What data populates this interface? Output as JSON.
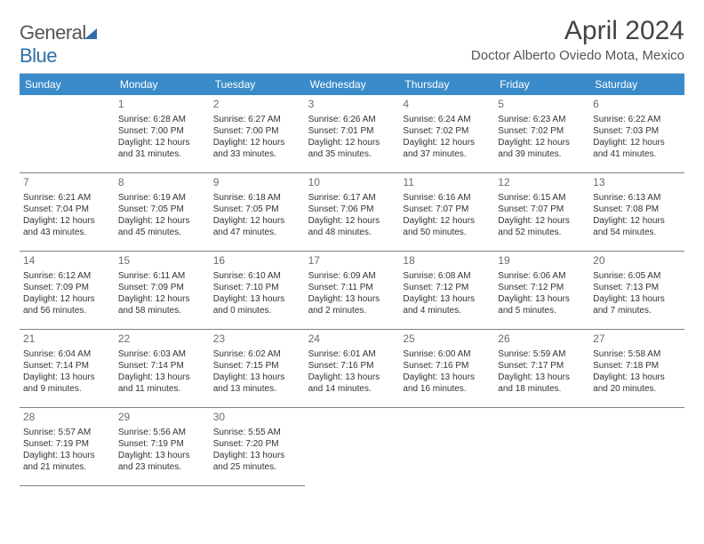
{
  "brand": {
    "part1": "General",
    "part2": "Blue"
  },
  "title": "April 2024",
  "location": "Doctor Alberto Oviedo Mota, Mexico",
  "style": {
    "header_bg": "#3a8bc9",
    "header_fg": "#ffffff",
    "border_color": "#808080",
    "daynum_color": "#6b6b6b",
    "text_color": "#333333",
    "font_size_body": 10,
    "font_size_daynum": 12,
    "font_size_head": 12,
    "font_size_title": 30,
    "font_size_location": 15
  },
  "weekdays": [
    "Sunday",
    "Monday",
    "Tuesday",
    "Wednesday",
    "Thursday",
    "Friday",
    "Saturday"
  ],
  "days": [
    null,
    {
      "n": "1",
      "l1": "Sunrise: 6:28 AM",
      "l2": "Sunset: 7:00 PM",
      "l3": "Daylight: 12 hours",
      "l4": "and 31 minutes."
    },
    {
      "n": "2",
      "l1": "Sunrise: 6:27 AM",
      "l2": "Sunset: 7:00 PM",
      "l3": "Daylight: 12 hours",
      "l4": "and 33 minutes."
    },
    {
      "n": "3",
      "l1": "Sunrise: 6:26 AM",
      "l2": "Sunset: 7:01 PM",
      "l3": "Daylight: 12 hours",
      "l4": "and 35 minutes."
    },
    {
      "n": "4",
      "l1": "Sunrise: 6:24 AM",
      "l2": "Sunset: 7:02 PM",
      "l3": "Daylight: 12 hours",
      "l4": "and 37 minutes."
    },
    {
      "n": "5",
      "l1": "Sunrise: 6:23 AM",
      "l2": "Sunset: 7:02 PM",
      "l3": "Daylight: 12 hours",
      "l4": "and 39 minutes."
    },
    {
      "n": "6",
      "l1": "Sunrise: 6:22 AM",
      "l2": "Sunset: 7:03 PM",
      "l3": "Daylight: 12 hours",
      "l4": "and 41 minutes."
    },
    {
      "n": "7",
      "l1": "Sunrise: 6:21 AM",
      "l2": "Sunset: 7:04 PM",
      "l3": "Daylight: 12 hours",
      "l4": "and 43 minutes."
    },
    {
      "n": "8",
      "l1": "Sunrise: 6:19 AM",
      "l2": "Sunset: 7:05 PM",
      "l3": "Daylight: 12 hours",
      "l4": "and 45 minutes."
    },
    {
      "n": "9",
      "l1": "Sunrise: 6:18 AM",
      "l2": "Sunset: 7:05 PM",
      "l3": "Daylight: 12 hours",
      "l4": "and 47 minutes."
    },
    {
      "n": "10",
      "l1": "Sunrise: 6:17 AM",
      "l2": "Sunset: 7:06 PM",
      "l3": "Daylight: 12 hours",
      "l4": "and 48 minutes."
    },
    {
      "n": "11",
      "l1": "Sunrise: 6:16 AM",
      "l2": "Sunset: 7:07 PM",
      "l3": "Daylight: 12 hours",
      "l4": "and 50 minutes."
    },
    {
      "n": "12",
      "l1": "Sunrise: 6:15 AM",
      "l2": "Sunset: 7:07 PM",
      "l3": "Daylight: 12 hours",
      "l4": "and 52 minutes."
    },
    {
      "n": "13",
      "l1": "Sunrise: 6:13 AM",
      "l2": "Sunset: 7:08 PM",
      "l3": "Daylight: 12 hours",
      "l4": "and 54 minutes."
    },
    {
      "n": "14",
      "l1": "Sunrise: 6:12 AM",
      "l2": "Sunset: 7:09 PM",
      "l3": "Daylight: 12 hours",
      "l4": "and 56 minutes."
    },
    {
      "n": "15",
      "l1": "Sunrise: 6:11 AM",
      "l2": "Sunset: 7:09 PM",
      "l3": "Daylight: 12 hours",
      "l4": "and 58 minutes."
    },
    {
      "n": "16",
      "l1": "Sunrise: 6:10 AM",
      "l2": "Sunset: 7:10 PM",
      "l3": "Daylight: 13 hours",
      "l4": "and 0 minutes."
    },
    {
      "n": "17",
      "l1": "Sunrise: 6:09 AM",
      "l2": "Sunset: 7:11 PM",
      "l3": "Daylight: 13 hours",
      "l4": "and 2 minutes."
    },
    {
      "n": "18",
      "l1": "Sunrise: 6:08 AM",
      "l2": "Sunset: 7:12 PM",
      "l3": "Daylight: 13 hours",
      "l4": "and 4 minutes."
    },
    {
      "n": "19",
      "l1": "Sunrise: 6:06 AM",
      "l2": "Sunset: 7:12 PM",
      "l3": "Daylight: 13 hours",
      "l4": "and 5 minutes."
    },
    {
      "n": "20",
      "l1": "Sunrise: 6:05 AM",
      "l2": "Sunset: 7:13 PM",
      "l3": "Daylight: 13 hours",
      "l4": "and 7 minutes."
    },
    {
      "n": "21",
      "l1": "Sunrise: 6:04 AM",
      "l2": "Sunset: 7:14 PM",
      "l3": "Daylight: 13 hours",
      "l4": "and 9 minutes."
    },
    {
      "n": "22",
      "l1": "Sunrise: 6:03 AM",
      "l2": "Sunset: 7:14 PM",
      "l3": "Daylight: 13 hours",
      "l4": "and 11 minutes."
    },
    {
      "n": "23",
      "l1": "Sunrise: 6:02 AM",
      "l2": "Sunset: 7:15 PM",
      "l3": "Daylight: 13 hours",
      "l4": "and 13 minutes."
    },
    {
      "n": "24",
      "l1": "Sunrise: 6:01 AM",
      "l2": "Sunset: 7:16 PM",
      "l3": "Daylight: 13 hours",
      "l4": "and 14 minutes."
    },
    {
      "n": "25",
      "l1": "Sunrise: 6:00 AM",
      "l2": "Sunset: 7:16 PM",
      "l3": "Daylight: 13 hours",
      "l4": "and 16 minutes."
    },
    {
      "n": "26",
      "l1": "Sunrise: 5:59 AM",
      "l2": "Sunset: 7:17 PM",
      "l3": "Daylight: 13 hours",
      "l4": "and 18 minutes."
    },
    {
      "n": "27",
      "l1": "Sunrise: 5:58 AM",
      "l2": "Sunset: 7:18 PM",
      "l3": "Daylight: 13 hours",
      "l4": "and 20 minutes."
    },
    {
      "n": "28",
      "l1": "Sunrise: 5:57 AM",
      "l2": "Sunset: 7:19 PM",
      "l3": "Daylight: 13 hours",
      "l4": "and 21 minutes."
    },
    {
      "n": "29",
      "l1": "Sunrise: 5:56 AM",
      "l2": "Sunset: 7:19 PM",
      "l3": "Daylight: 13 hours",
      "l4": "and 23 minutes."
    },
    {
      "n": "30",
      "l1": "Sunrise: 5:55 AM",
      "l2": "Sunset: 7:20 PM",
      "l3": "Daylight: 13 hours",
      "l4": "and 25 minutes."
    },
    null,
    null,
    null,
    null
  ]
}
